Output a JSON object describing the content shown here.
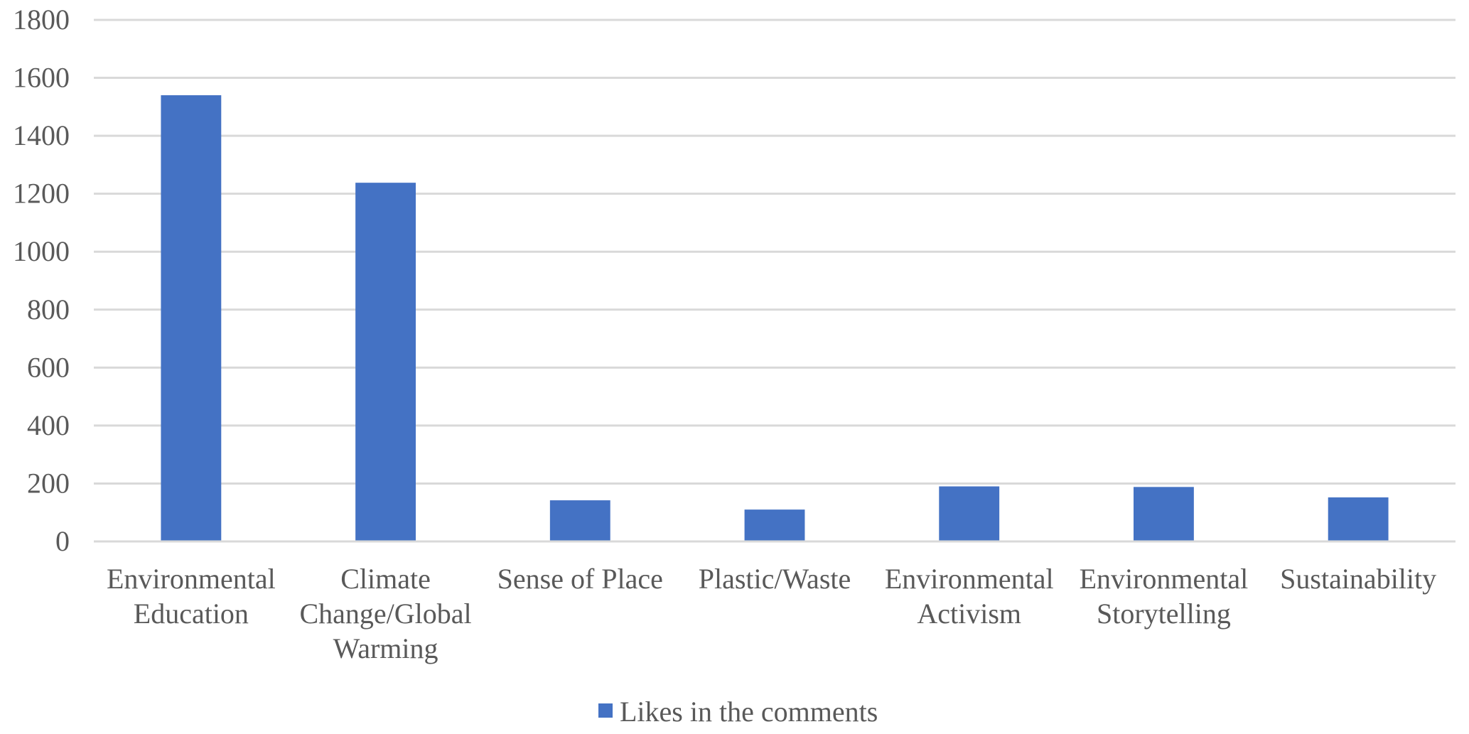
{
  "chart_data": {
    "type": "bar",
    "categories": [
      [
        "Environmental",
        "Education"
      ],
      [
        "Climate",
        "Change/Global",
        "Warming"
      ],
      [
        "Sense of Place"
      ],
      [
        "Plastic/Waste"
      ],
      [
        "Environmental",
        "Activism"
      ],
      [
        "Environmental",
        "Storytelling"
      ],
      [
        "Sustainability"
      ]
    ],
    "series": [
      {
        "name": "Likes in the comments",
        "color": "#4472C4",
        "values": [
          1540,
          1238,
          142,
          110,
          190,
          188,
          152
        ]
      }
    ],
    "ylim": [
      0,
      1800
    ],
    "yticks": [
      0,
      200,
      400,
      600,
      800,
      1000,
      1200,
      1400,
      1600,
      1800
    ],
    "grid": true,
    "legend_position": "bottom"
  }
}
